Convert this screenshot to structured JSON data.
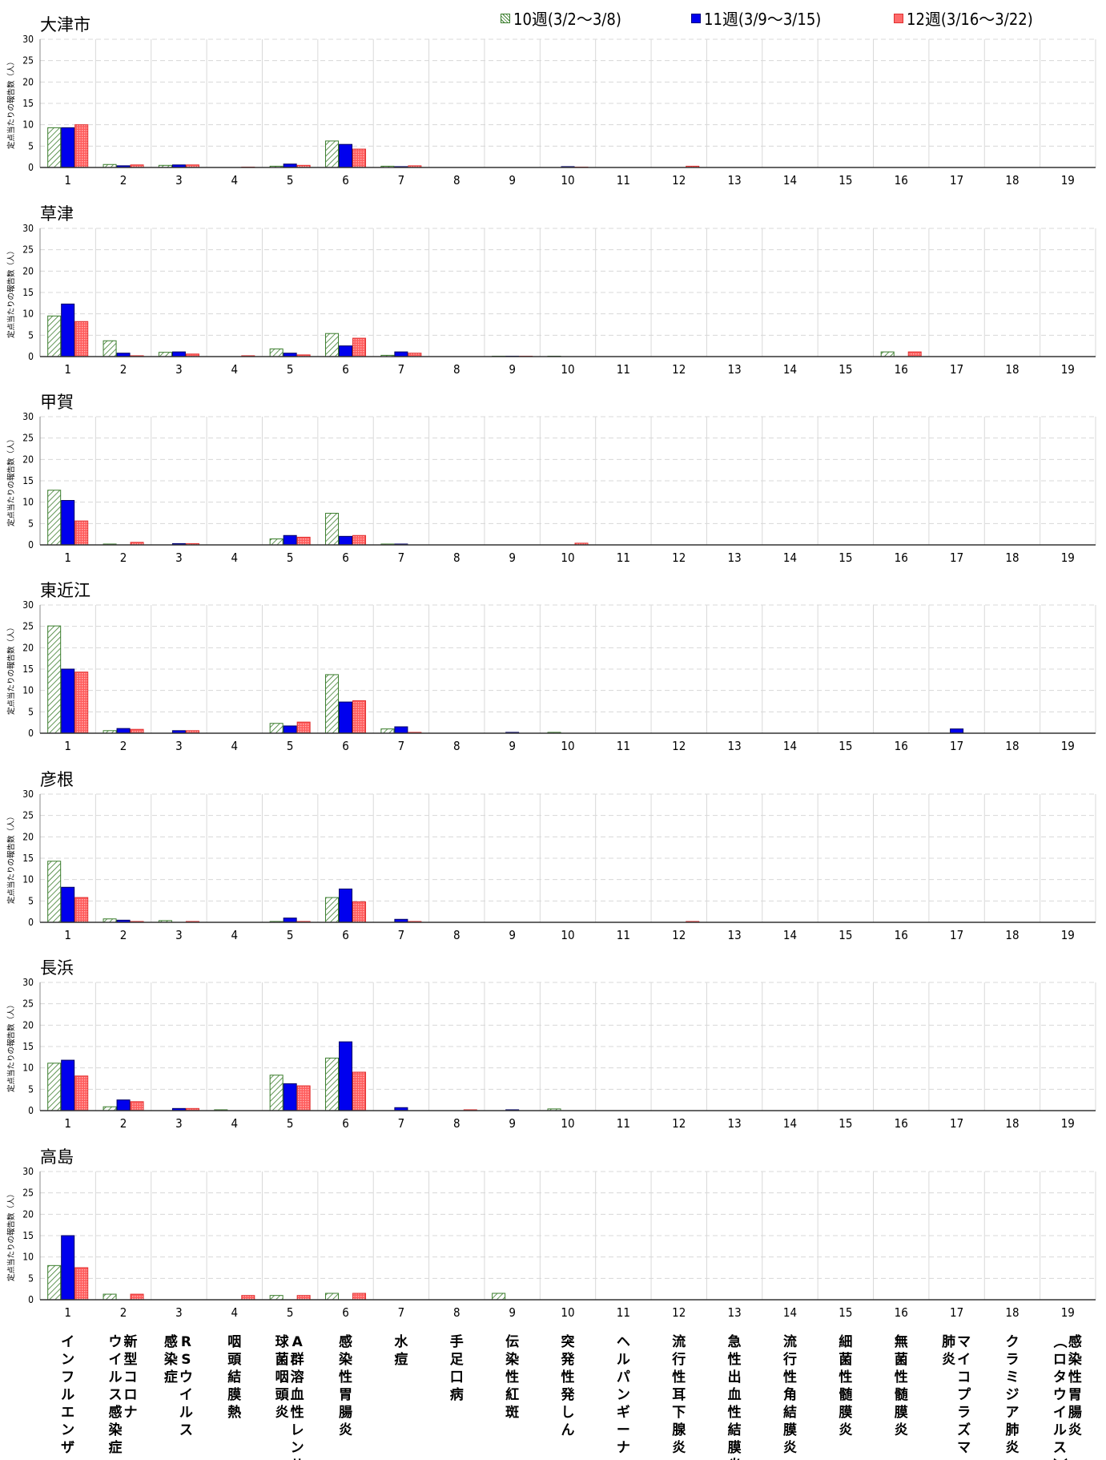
{
  "legend": {
    "items": [
      "10週(3/2～3/8)",
      "11週(3/9～3/15)",
      "12週(3/16～3/22)"
    ]
  },
  "colors": {
    "week10_stroke": "#3a7d2c",
    "week10_fill": "#ffffff",
    "week11": "#0000ee",
    "week12_stroke": "#e03030",
    "week12_fill": "#ff6b6b",
    "grid": "#d8d8d8"
  },
  "y_axis_label": "定点当たりの報告数（人）",
  "disease_labels": [
    [
      "インフルエンザ"
    ],
    [
      "新型コロナ",
      "ウイルス感染症"
    ],
    [
      "RSウイルス",
      "感染症"
    ],
    [
      "咽頭結膜熱"
    ],
    [
      "A群溶血性レンサ",
      "球菌咽頭炎"
    ],
    [
      "感染性胃腸炎"
    ],
    [
      "水痘"
    ],
    [
      "手足口病"
    ],
    [
      "伝染性紅斑"
    ],
    [
      "突発性発しん"
    ],
    [
      "ヘルパンギーナ"
    ],
    [
      "流行性耳下腺炎"
    ],
    [
      "急性出血性結膜炎"
    ],
    [
      "流行性角結膜炎"
    ],
    [
      "細菌性髄膜炎"
    ],
    [
      "無菌性髄膜炎"
    ],
    [
      "マイコプラズマ",
      "肺炎"
    ],
    [
      "クラミジア肺炎"
    ],
    [
      "感染性胃腸炎",
      "（ロタウイルス）"
    ]
  ],
  "chart_data": [
    {
      "type": "bar",
      "title": "大津市",
      "categories": [
        "1",
        "2",
        "3",
        "4",
        "5",
        "6",
        "7",
        "8",
        "9",
        "10",
        "11",
        "12",
        "13",
        "14",
        "15",
        "16",
        "17",
        "18",
        "19"
      ],
      "ylim": [
        0,
        30
      ],
      "yticks": [
        0,
        5,
        10,
        15,
        20,
        25,
        30
      ],
      "series": [
        {
          "name": "10週(3/2～3/8)",
          "values": [
            9.3,
            0.7,
            0.5,
            0,
            0.3,
            6.2,
            0.3,
            0,
            0,
            0,
            0,
            0,
            0,
            0,
            0,
            0,
            0,
            0,
            0
          ]
        },
        {
          "name": "11週(3/9～3/15)",
          "values": [
            9.3,
            0.4,
            0.6,
            0,
            0.8,
            5.4,
            0.2,
            0,
            0,
            0.2,
            0,
            0,
            0,
            0,
            0,
            0,
            0,
            0,
            0
          ]
        },
        {
          "name": "12週(3/16～3/22)",
          "values": [
            10.0,
            0.6,
            0.6,
            0.1,
            0.5,
            4.3,
            0.4,
            0,
            0,
            0.1,
            0,
            0.3,
            0,
            0,
            0,
            0,
            0,
            0,
            0
          ]
        }
      ]
    },
    {
      "type": "bar",
      "title": "草津",
      "categories": [
        "1",
        "2",
        "3",
        "4",
        "5",
        "6",
        "7",
        "8",
        "9",
        "10",
        "11",
        "12",
        "13",
        "14",
        "15",
        "16",
        "17",
        "18",
        "19"
      ],
      "ylim": [
        0,
        30
      ],
      "yticks": [
        0,
        5,
        10,
        15,
        20,
        25,
        30
      ],
      "series": [
        {
          "name": "10週(3/2～3/8)",
          "values": [
            9.5,
            3.7,
            1.0,
            0,
            1.8,
            5.4,
            0.3,
            0,
            0.1,
            0.1,
            0,
            0,
            0,
            0,
            0,
            1.1,
            0,
            0,
            0
          ]
        },
        {
          "name": "11週(3/9～3/15)",
          "values": [
            12.3,
            0.8,
            1.1,
            0,
            0.8,
            2.5,
            1.1,
            0,
            0.1,
            0,
            0,
            0,
            0,
            0,
            0,
            0,
            0,
            0,
            0
          ]
        },
        {
          "name": "12週(3/16～3/22)",
          "values": [
            8.2,
            0.2,
            0.6,
            0.2,
            0.4,
            4.3,
            0.8,
            0,
            0.1,
            0,
            0,
            0,
            0,
            0,
            0,
            1.1,
            0,
            0,
            0
          ]
        }
      ]
    },
    {
      "type": "bar",
      "title": "甲賀",
      "categories": [
        "1",
        "2",
        "3",
        "4",
        "5",
        "6",
        "7",
        "8",
        "9",
        "10",
        "11",
        "12",
        "13",
        "14",
        "15",
        "16",
        "17",
        "18",
        "19"
      ],
      "ylim": [
        0,
        30
      ],
      "yticks": [
        0,
        5,
        10,
        15,
        20,
        25,
        30
      ],
      "series": [
        {
          "name": "10週(3/2～3/8)",
          "values": [
            12.8,
            0.2,
            0,
            0,
            1.4,
            7.4,
            0.2,
            0,
            0,
            0,
            0,
            0,
            0,
            0,
            0,
            0,
            0,
            0,
            0
          ]
        },
        {
          "name": "11週(3/9～3/15)",
          "values": [
            10.4,
            0,
            0.3,
            0,
            2.2,
            2.0,
            0.2,
            0,
            0,
            0,
            0,
            0,
            0,
            0,
            0,
            0,
            0,
            0,
            0
          ]
        },
        {
          "name": "12週(3/16～3/22)",
          "values": [
            5.6,
            0.6,
            0.3,
            0,
            1.8,
            2.2,
            0,
            0,
            0,
            0.4,
            0,
            0,
            0,
            0,
            0,
            0,
            0,
            0,
            0
          ]
        }
      ]
    },
    {
      "type": "bar",
      "title": "東近江",
      "categories": [
        "1",
        "2",
        "3",
        "4",
        "5",
        "6",
        "7",
        "8",
        "9",
        "10",
        "11",
        "12",
        "13",
        "14",
        "15",
        "16",
        "17",
        "18",
        "19"
      ],
      "ylim": [
        0,
        30
      ],
      "yticks": [
        0,
        5,
        10,
        15,
        20,
        25,
        30
      ],
      "series": [
        {
          "name": "10週(3/2～3/8)",
          "values": [
            25.1,
            0.6,
            0,
            0,
            2.3,
            13.7,
            1.0,
            0,
            0,
            0.2,
            0,
            0,
            0,
            0,
            0,
            0,
            0,
            0,
            0
          ]
        },
        {
          "name": "11週(3/9～3/15)",
          "values": [
            15.0,
            1.1,
            0.6,
            0,
            1.7,
            7.3,
            1.5,
            0,
            0.2,
            0,
            0,
            0,
            0,
            0,
            0,
            0,
            1.0,
            0,
            0
          ]
        },
        {
          "name": "12週(3/16～3/22)",
          "values": [
            14.3,
            0.9,
            0.6,
            0,
            2.6,
            7.6,
            0.2,
            0,
            0,
            0,
            0,
            0,
            0,
            0,
            0,
            0,
            0,
            0,
            0
          ]
        }
      ]
    },
    {
      "type": "bar",
      "title": "彦根",
      "categories": [
        "1",
        "2",
        "3",
        "4",
        "5",
        "6",
        "7",
        "8",
        "9",
        "10",
        "11",
        "12",
        "13",
        "14",
        "15",
        "16",
        "17",
        "18",
        "19"
      ],
      "ylim": [
        0,
        30
      ],
      "yticks": [
        0,
        5,
        10,
        15,
        20,
        25,
        30
      ],
      "series": [
        {
          "name": "10週(3/2～3/8)",
          "values": [
            14.3,
            0.8,
            0.4,
            0,
            0.2,
            5.8,
            0,
            0,
            0,
            0,
            0,
            0,
            0,
            0,
            0,
            0,
            0,
            0,
            0
          ]
        },
        {
          "name": "11週(3/9～3/15)",
          "values": [
            8.2,
            0.5,
            0,
            0,
            1.0,
            7.8,
            0.7,
            0,
            0,
            0,
            0,
            0,
            0,
            0,
            0,
            0,
            0,
            0,
            0
          ]
        },
        {
          "name": "12週(3/16～3/22)",
          "values": [
            5.8,
            0.2,
            0.2,
            0,
            0.2,
            4.8,
            0.2,
            0,
            0,
            0,
            0,
            0.2,
            0,
            0,
            0,
            0,
            0,
            0,
            0
          ]
        }
      ]
    },
    {
      "type": "bar",
      "title": "長浜",
      "categories": [
        "1",
        "2",
        "3",
        "4",
        "5",
        "6",
        "7",
        "8",
        "9",
        "10",
        "11",
        "12",
        "13",
        "14",
        "15",
        "16",
        "17",
        "18",
        "19"
      ],
      "ylim": [
        0,
        30
      ],
      "yticks": [
        0,
        5,
        10,
        15,
        20,
        25,
        30
      ],
      "series": [
        {
          "name": "10週(3/2～3/8)",
          "values": [
            11.1,
            0.9,
            0,
            0.2,
            8.3,
            12.3,
            0,
            0,
            0,
            0.4,
            0,
            0,
            0,
            0,
            0,
            0,
            0,
            0,
            0
          ]
        },
        {
          "name": "11週(3/9～3/15)",
          "values": [
            11.8,
            2.5,
            0.5,
            0,
            6.3,
            16.1,
            0.7,
            0,
            0.2,
            0,
            0,
            0,
            0,
            0,
            0,
            0,
            0,
            0,
            0
          ]
        },
        {
          "name": "12週(3/16～3/22)",
          "values": [
            8.1,
            2.1,
            0.5,
            0,
            5.8,
            9.0,
            0,
            0.2,
            0,
            0,
            0,
            0,
            0,
            0,
            0,
            0,
            0,
            0,
            0
          ]
        }
      ]
    },
    {
      "type": "bar",
      "title": "高島",
      "categories": [
        "1",
        "2",
        "3",
        "4",
        "5",
        "6",
        "7",
        "8",
        "9",
        "10",
        "11",
        "12",
        "13",
        "14",
        "15",
        "16",
        "17",
        "18",
        "19"
      ],
      "ylim": [
        0,
        30
      ],
      "yticks": [
        0,
        5,
        10,
        15,
        20,
        25,
        30
      ],
      "series": [
        {
          "name": "10週(3/2～3/8)",
          "values": [
            8.0,
            1.3,
            0,
            0,
            1.0,
            1.5,
            0,
            0,
            1.5,
            0,
            0,
            0,
            0,
            0,
            0,
            0,
            0,
            0,
            0
          ]
        },
        {
          "name": "11週(3/9～3/15)",
          "values": [
            15.0,
            0,
            0,
            0,
            0,
            0,
            0,
            0,
            0,
            0,
            0,
            0,
            0,
            0,
            0,
            0,
            0,
            0,
            0
          ]
        },
        {
          "name": "12週(3/16～3/22)",
          "values": [
            7.5,
            1.3,
            0,
            1.0,
            1.0,
            1.5,
            0,
            0,
            0,
            0,
            0,
            0,
            0,
            0,
            0,
            0,
            0,
            0,
            0
          ]
        }
      ]
    }
  ]
}
